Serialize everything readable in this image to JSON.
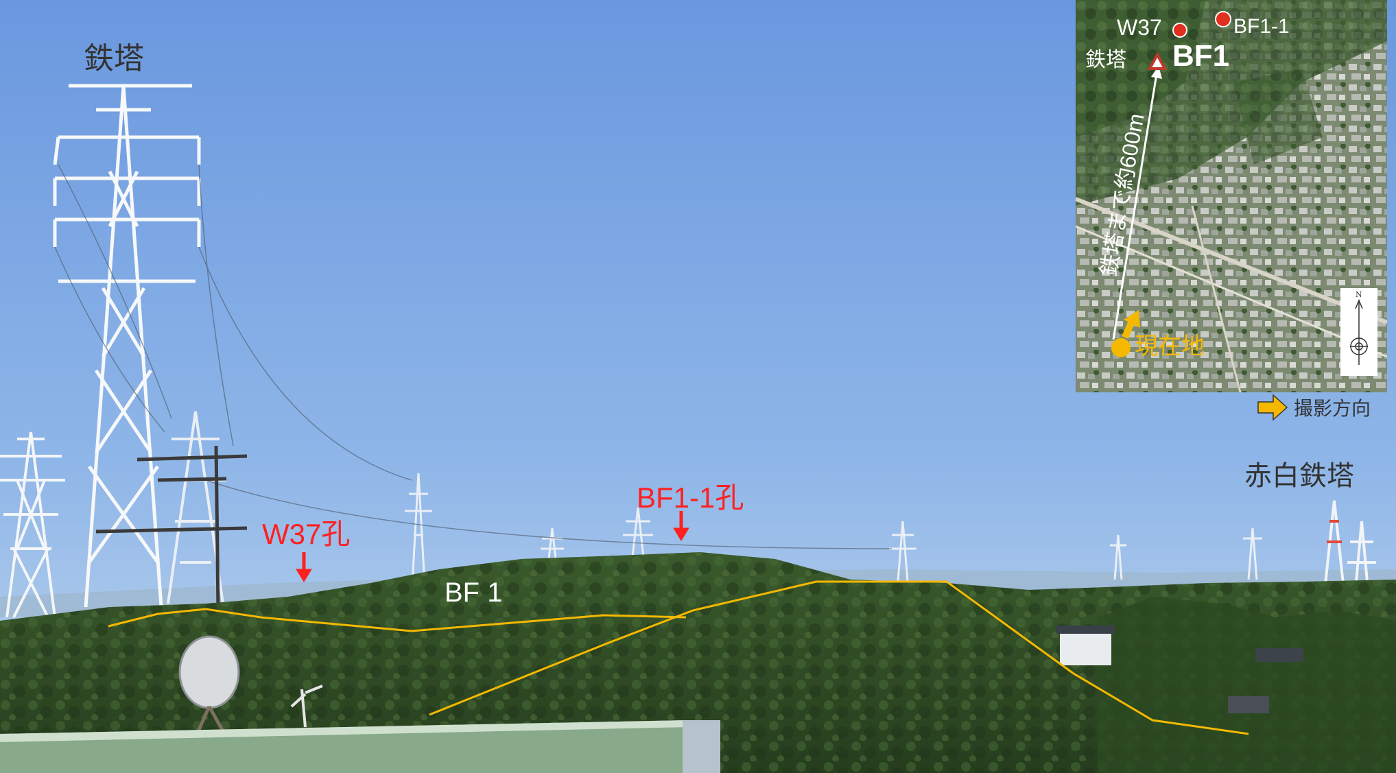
{
  "photo": {
    "tower_label": "鉄塔",
    "red_white_tower_label": "赤白鉄塔",
    "fault_label": "BF 1",
    "boreholes": [
      {
        "label": "W37孔"
      },
      {
        "label": "BF1-1孔"
      }
    ]
  },
  "inset_map": {
    "points": [
      {
        "label": "W37"
      },
      {
        "label": "BF1-1"
      }
    ],
    "fault_label": "BF1",
    "tower_label": "鉄塔",
    "distance_label": "鉄塔まで約600m",
    "current_location_label": "現在地",
    "north_label": "N"
  },
  "legend": {
    "direction_label": "撮影方向"
  },
  "colors": {
    "trace_line": "#f5b800",
    "annotation_red": "#ff2020",
    "sky_top": "#6d9be0",
    "sky_bottom": "#a9c8ec",
    "forest": "#2f4a26"
  }
}
